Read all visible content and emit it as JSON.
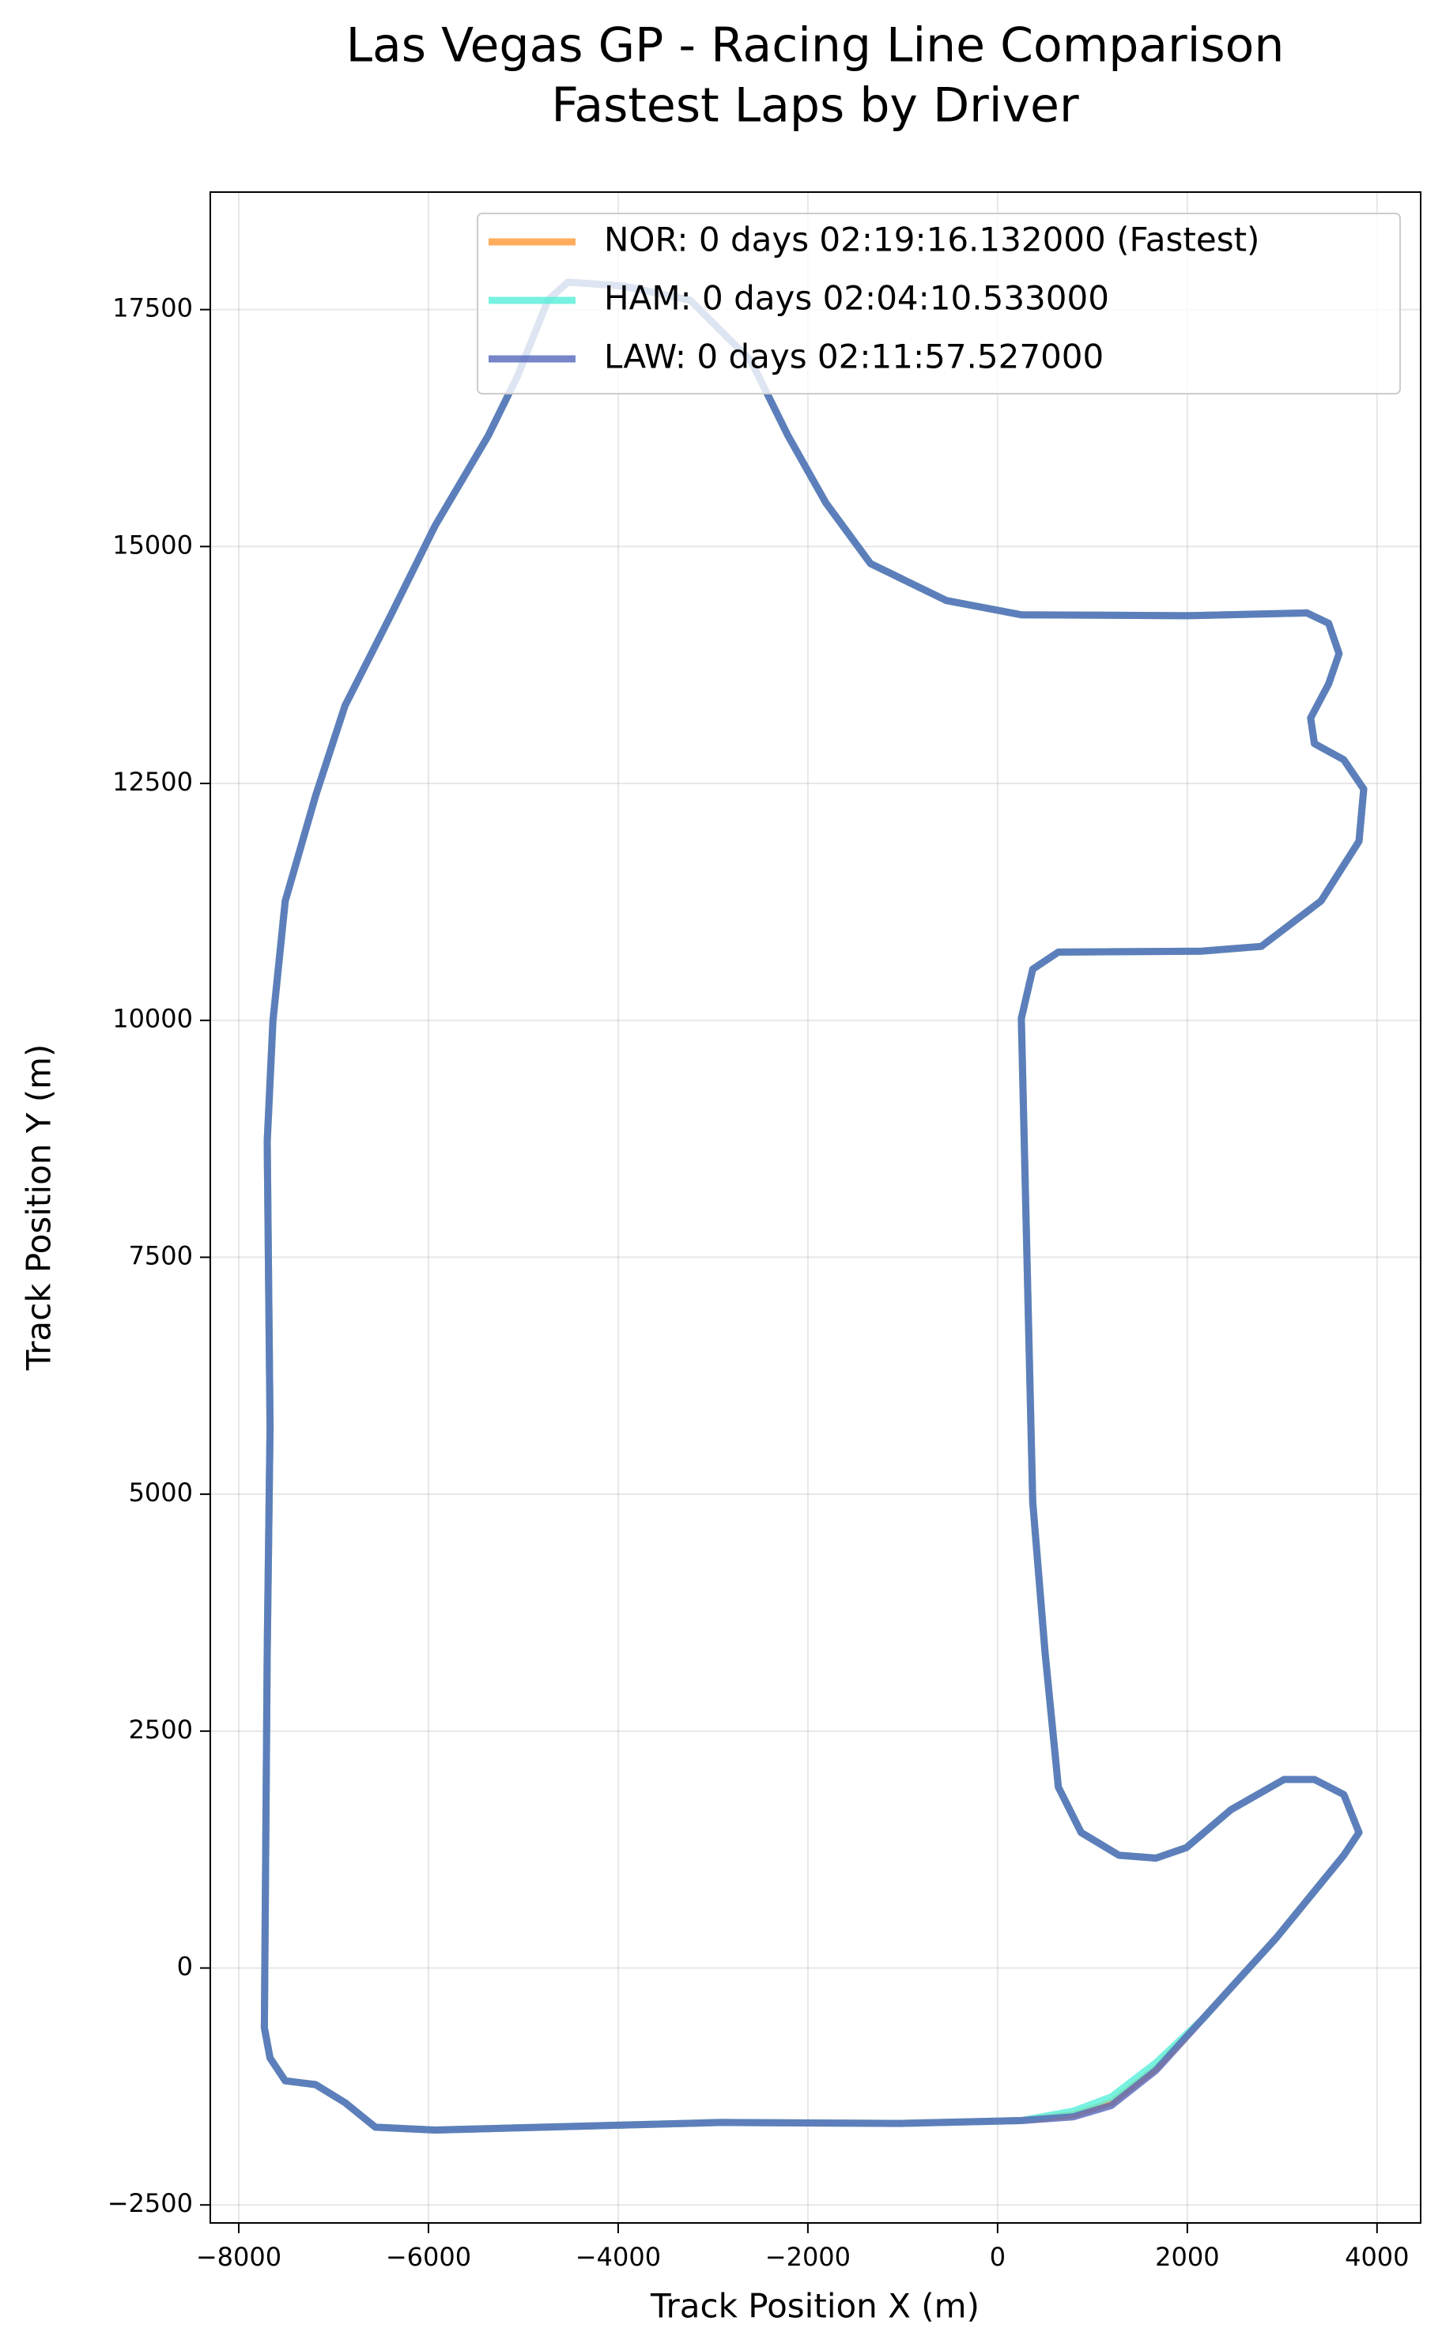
{
  "chart_data": {
    "type": "line",
    "title": "Las Vegas GP - Racing Line Comparison",
    "subtitle": "Fastest Laps by Driver",
    "xlabel": "Track Position X (m)",
    "ylabel": "Track Position Y (m)",
    "xlim": [
      -8300,
      4460
    ],
    "ylim": [
      -2690,
      18740
    ],
    "xticks": [
      {
        "value": -8000,
        "label": "−8000"
      },
      {
        "value": -6000,
        "label": "−6000"
      },
      {
        "value": -4000,
        "label": "−4000"
      },
      {
        "value": -2000,
        "label": "−2000"
      },
      0,
      2000,
      4000
    ],
    "yticks": [
      {
        "value": -2500,
        "label": "−2500"
      },
      0,
      2500,
      5000,
      7500,
      10000,
      12500,
      15000,
      17500
    ],
    "grid": true,
    "legend": "upper right",
    "series": [
      {
        "name": "NOR: 0 days 02:19:16.132000 (Fastest)",
        "color": "#ff9933",
        "x": [
          250,
          370,
          500,
          640,
          880,
          1280,
          1670,
          1990,
          2460,
          3020,
          3340,
          3650,
          3810,
          3650,
          2940,
          2150,
          1670,
          1200,
          800,
          250,
          -1020,
          -2920,
          -5930,
          -6560,
          -6880,
          -7190,
          -7510,
          -7670,
          -7730,
          -7700,
          -7670,
          -7700,
          -7640,
          -7510,
          -7190,
          -6880,
          -6400,
          -5930,
          -5370,
          -5060,
          -4740,
          -4530,
          -3950,
          -3240,
          -2600,
          -2210,
          -1810,
          -1340,
          -540,
          250,
          1990,
          3260,
          3490,
          3600,
          3490,
          3300,
          3340,
          3650,
          3860,
          3810,
          3410,
          2780,
          2150,
          640,
          370,
          250
        ],
        "values": [
          10020,
          4920,
          3330,
          1910,
          1430,
          1190,
          1160,
          1270,
          1670,
          1990,
          1990,
          1830,
          1430,
          1190,
          320,
          -550,
          -1060,
          -1420,
          -1550,
          -1610,
          -1640,
          -1630,
          -1710,
          -1680,
          -1420,
          -1230,
          -1190,
          -950,
          -630,
          3330,
          5710,
          8720,
          9990,
          11260,
          12370,
          13320,
          14270,
          15220,
          16170,
          16800,
          17600,
          17790,
          17750,
          17600,
          16960,
          16170,
          15460,
          14820,
          14430,
          14280,
          14270,
          14300,
          14190,
          13870,
          13550,
          13190,
          12920,
          12750,
          12440,
          11890,
          11260,
          10780,
          10730,
          10720,
          10540,
          10020
        ]
      },
      {
        "name": "HAM: 0 days 02:04:10.533000",
        "color": "#55efd8",
        "x": [
          250,
          370,
          500,
          640,
          880,
          1280,
          1670,
          1990,
          2460,
          3020,
          3340,
          3650,
          3810,
          3650,
          2940,
          2150,
          1670,
          1200,
          800,
          250,
          -1020,
          -2920,
          -5930,
          -6560,
          -6880,
          -7190,
          -7510,
          -7670,
          -7730,
          -7700,
          -7670,
          -7700,
          -7640,
          -7510,
          -7190,
          -6880,
          -6400,
          -5930,
          -5370,
          -5060,
          -4740,
          -4530,
          -3950,
          -3240,
          -2600,
          -2210,
          -1810,
          -1340,
          -540,
          250,
          1990,
          3260,
          3490,
          3600,
          3490,
          3300,
          3340,
          3650,
          3860,
          3810,
          3410,
          2780,
          2150,
          640,
          370,
          250
        ],
        "values": [
          10020,
          4920,
          3330,
          1910,
          1430,
          1190,
          1160,
          1270,
          1670,
          1990,
          1990,
          1830,
          1430,
          1190,
          320,
          -550,
          -1000,
          -1360,
          -1510,
          -1610,
          -1640,
          -1630,
          -1710,
          -1680,
          -1420,
          -1230,
          -1190,
          -950,
          -630,
          3330,
          5710,
          8720,
          9990,
          11260,
          12370,
          13320,
          14270,
          15220,
          16170,
          16800,
          17600,
          17790,
          17750,
          17600,
          16960,
          16170,
          15460,
          14820,
          14430,
          14280,
          14270,
          14300,
          14190,
          13870,
          13550,
          13190,
          12920,
          12750,
          12440,
          11890,
          11260,
          10780,
          10730,
          10720,
          10540,
          10020
        ]
      },
      {
        "name": "LAW: 0 days 02:11:57.527000",
        "color": "#5566bb",
        "x": [
          250,
          370,
          500,
          640,
          880,
          1280,
          1670,
          1990,
          2460,
          3020,
          3340,
          3650,
          3810,
          3650,
          2940,
          2150,
          1670,
          1200,
          800,
          250,
          -1020,
          -2920,
          -5930,
          -6560,
          -6880,
          -7190,
          -7510,
          -7670,
          -7730,
          -7700,
          -7670,
          -7700,
          -7640,
          -7510,
          -7190,
          -6880,
          -6400,
          -5930,
          -5370,
          -5060,
          -4740,
          -4530,
          -3950,
          -3240,
          -2600,
          -2210,
          -1810,
          -1340,
          -540,
          250,
          1990,
          3260,
          3490,
          3600,
          3490,
          3300,
          3340,
          3650,
          3860,
          3810,
          3410,
          2780,
          2150,
          640,
          370,
          250
        ],
        "values": [
          10020,
          4920,
          3330,
          1910,
          1430,
          1190,
          1160,
          1270,
          1670,
          1990,
          1990,
          1830,
          1430,
          1190,
          320,
          -550,
          -1080,
          -1450,
          -1570,
          -1610,
          -1640,
          -1630,
          -1710,
          -1680,
          -1420,
          -1230,
          -1190,
          -950,
          -630,
          3330,
          5710,
          8720,
          9990,
          11260,
          12370,
          13320,
          14270,
          15220,
          16170,
          16800,
          17600,
          17790,
          17750,
          17600,
          16960,
          16170,
          15460,
          14820,
          14430,
          14280,
          14270,
          14300,
          14190,
          13870,
          13550,
          13190,
          12920,
          12750,
          12440,
          11890,
          11260,
          10780,
          10730,
          10720,
          10540,
          10020
        ]
      }
    ]
  }
}
